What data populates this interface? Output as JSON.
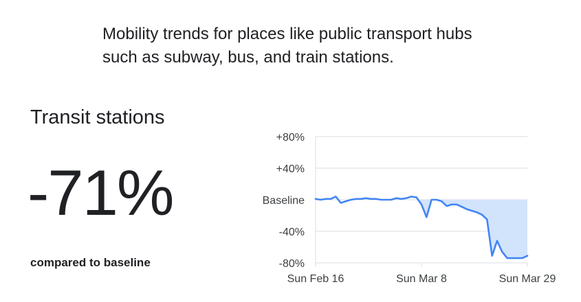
{
  "description": "Mobility trends for places like public transport hubs such as subway, bus, and train stations.",
  "category": "Transit stations",
  "headline_value": "-71%",
  "comparison_label": "compared to baseline",
  "colors": {
    "line": "#4285f4",
    "fill": "#d2e3fc",
    "grid": "#dadce0",
    "text": "#202124"
  },
  "chart_data": {
    "type": "area",
    "title": "",
    "xlabel": "",
    "ylabel": "",
    "ylim": [
      -80,
      80
    ],
    "y_ticks": [
      {
        "value": 80,
        "label": "+80%"
      },
      {
        "value": 40,
        "label": "+40%"
      },
      {
        "value": 0,
        "label": "Baseline"
      },
      {
        "value": -40,
        "label": "-40%"
      },
      {
        "value": -80,
        "label": "-80%"
      }
    ],
    "x_ticks": [
      {
        "day": 0,
        "label": "Sun Feb 16"
      },
      {
        "day": 21,
        "label": "Sun Mar 8"
      },
      {
        "day": 42,
        "label": "Sun Mar 29"
      }
    ],
    "grid": true,
    "series": [
      {
        "x": [
          0,
          1,
          2,
          3,
          4,
          5,
          6,
          7,
          8,
          9,
          10,
          11,
          12,
          13,
          14,
          15,
          16,
          17,
          18,
          19,
          20,
          21,
          22,
          23,
          24,
          25,
          26,
          27,
          28,
          29,
          30,
          31,
          32,
          33,
          34,
          35,
          36,
          37,
          38,
          39,
          40,
          41,
          42
        ],
        "values": [
          1,
          0,
          1,
          1,
          4,
          -4,
          -2,
          0,
          1,
          1,
          2,
          1,
          1,
          0,
          0,
          0,
          2,
          1,
          2,
          4,
          3,
          -6,
          -22,
          0,
          0,
          -2,
          -8,
          -6,
          -6,
          -9,
          -12,
          -14,
          -16,
          -19,
          -25,
          -71,
          -52,
          -66,
          -74,
          -74,
          -74,
          -74,
          -71
        ]
      }
    ]
  }
}
